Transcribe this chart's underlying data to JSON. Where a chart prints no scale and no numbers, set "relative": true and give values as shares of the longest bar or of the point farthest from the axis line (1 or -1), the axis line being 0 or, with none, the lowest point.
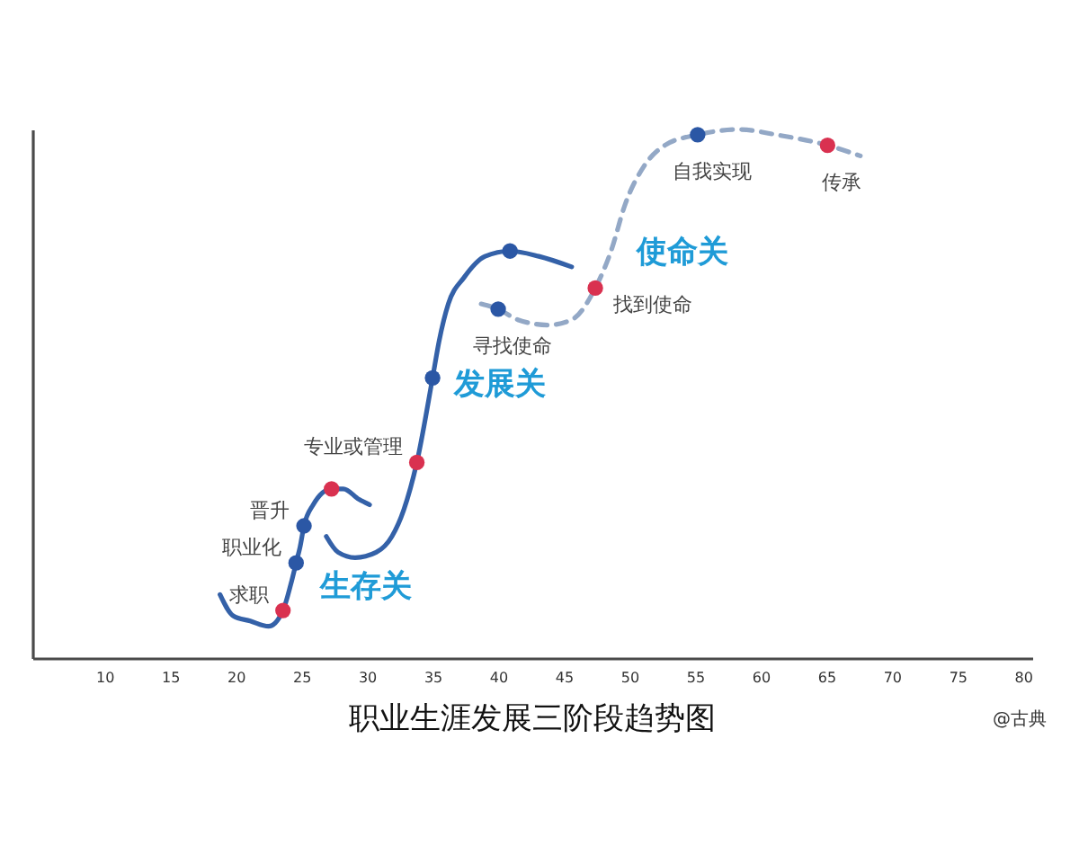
{
  "chart_data": {
    "type": "line",
    "title": "职业生涯发展三阶段趋势图",
    "relative": true,
    "xlim": [
      4.5,
      80.7
    ],
    "xticks": [
      10,
      15,
      20,
      25,
      30,
      35,
      40,
      45,
      50,
      55,
      60,
      65,
      70,
      75,
      80
    ],
    "series": [
      {
        "name": "生存关",
        "color": "#3461a8",
        "line_style": "solid",
        "x": [
          18.8,
          19.8,
          21.1,
          22.5,
          23.6,
          24.2,
          24.6,
          24.9,
          25.2,
          25.9,
          27.3,
          28.2,
          29.4,
          30.2
        ],
        "values": [
          0.12,
          0.08,
          0.07,
          0.06,
          0.09,
          0.14,
          0.18,
          0.21,
          0.25,
          0.29,
          0.32,
          0.32,
          0.3,
          0.29
        ]
      },
      {
        "name": "发展关",
        "color": "#3461a8",
        "line_style": "solid",
        "x": [
          26.9,
          27.8,
          29.1,
          30.7,
          31.9,
          32.8,
          33.8,
          35.0,
          35.5,
          36.2,
          37.4,
          39.0,
          40.9,
          43.1,
          45.6
        ],
        "values": [
          0.23,
          0.2,
          0.19,
          0.2,
          0.23,
          0.28,
          0.37,
          0.53,
          0.6,
          0.67,
          0.72,
          0.76,
          0.77,
          0.76,
          0.74
        ]
      },
      {
        "name": "使命关",
        "color": "#93a8c6",
        "line_style": "dashed",
        "x": [
          38.7,
          40.0,
          41.5,
          43.8,
          45.6,
          47.4,
          48.6,
          49.7,
          51.1,
          52.7,
          55.2,
          58.4,
          61.2,
          65.1,
          67.6
        ],
        "values": [
          0.67,
          0.66,
          0.64,
          0.63,
          0.64,
          0.7,
          0.77,
          0.86,
          0.93,
          0.97,
          0.99,
          1.0,
          0.99,
          0.97,
          0.95
        ]
      },
      {
        "type": "scatter",
        "color": "#2b57a5",
        "marker": "circle",
        "x": [
          24.6,
          25.2,
          35.0,
          40.0,
          40.9,
          55.2
        ],
        "values": [
          0.18,
          0.25,
          0.53,
          0.66,
          0.77,
          0.99
        ]
      },
      {
        "type": "scatter",
        "color": "#d93150",
        "marker": "circle",
        "x": [
          23.6,
          27.3,
          33.8,
          47.4,
          65.1
        ],
        "values": [
          0.09,
          0.32,
          0.37,
          0.7,
          0.97
        ]
      }
    ],
    "annotations": [
      {
        "text": "求职",
        "x": 23.6,
        "y": 0.09
      },
      {
        "text": "职业化",
        "x": 24.6,
        "y": 0.18
      },
      {
        "text": "晋升",
        "x": 25.2,
        "y": 0.25
      },
      {
        "text": "专业或管理",
        "x": 33.8,
        "y": 0.37
      },
      {
        "text": "寻找使命",
        "x": 40.0,
        "y": 0.66
      },
      {
        "text": "找到使命",
        "x": 47.4,
        "y": 0.7
      },
      {
        "text": "自我实现",
        "x": 55.2,
        "y": 0.99
      },
      {
        "text": "传承",
        "x": 65.1,
        "y": 0.97
      },
      "@古典"
    ]
  }
}
